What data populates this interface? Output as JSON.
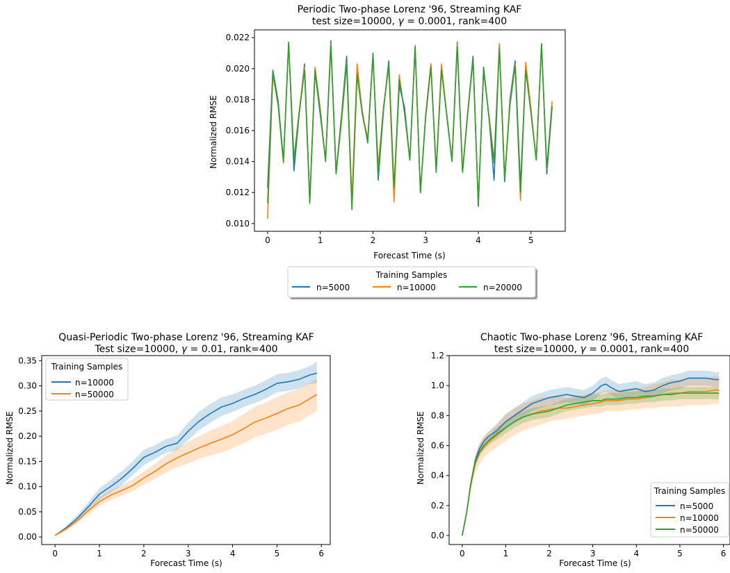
{
  "chart_data": [
    {
      "type": "line",
      "title": "Periodic Two-phase Lorenz '96, Streaming KAF",
      "subtitle_prefix": "test size=10000, ",
      "subtitle_gamma_symbol": "γ",
      "subtitle_suffix": " = 0.0001, rank=400",
      "xlabel": "Forecast Time (s)",
      "ylabel": "Normalized RMSE",
      "xlim": [
        -0.25,
        5.65
      ],
      "ylim": [
        0.0095,
        0.0225
      ],
      "xticks": [
        0,
        1,
        2,
        3,
        4,
        5
      ],
      "yticks": [
        0.01,
        0.012,
        0.014,
        0.016,
        0.018,
        0.02,
        0.022
      ],
      "ytick_format": 3,
      "legend": {
        "title": "Training Samples",
        "placement": "below-center",
        "ncol": 3,
        "shadow": true
      },
      "x": [
        0.0,
        0.1,
        0.2,
        0.3,
        0.4,
        0.5,
        0.6,
        0.7,
        0.8,
        0.9,
        1.0,
        1.1,
        1.2,
        1.3,
        1.4,
        1.5,
        1.6,
        1.7,
        1.8,
        1.9,
        2.0,
        2.1,
        2.2,
        2.3,
        2.4,
        2.5,
        2.6,
        2.7,
        2.8,
        2.9,
        3.0,
        3.1,
        3.2,
        3.3,
        3.4,
        3.5,
        3.6,
        3.7,
        3.8,
        3.9,
        4.0,
        4.1,
        4.2,
        4.3,
        4.4,
        4.5,
        4.6,
        4.7,
        4.8,
        4.9,
        5.0,
        5.1,
        5.2,
        5.3,
        5.4
      ],
      "series": [
        {
          "name": "n=5000",
          "color": "#1f77b4",
          "values": [
            0.0123,
            0.0199,
            0.0179,
            0.0141,
            0.0217,
            0.0134,
            0.0171,
            0.0203,
            0.0115,
            0.0198,
            0.017,
            0.0141,
            0.0218,
            0.0133,
            0.0169,
            0.0208,
            0.0113,
            0.0199,
            0.0172,
            0.0152,
            0.021,
            0.0128,
            0.0173,
            0.0205,
            0.012,
            0.0189,
            0.0175,
            0.0141,
            0.0214,
            0.012,
            0.017,
            0.0203,
            0.0133,
            0.0201,
            0.0171,
            0.0141,
            0.0217,
            0.0133,
            0.0172,
            0.0208,
            0.0112,
            0.0201,
            0.017,
            0.0128,
            0.0216,
            0.0127,
            0.018,
            0.0205,
            0.0124,
            0.0201,
            0.0172,
            0.0141,
            0.0216,
            0.0132,
            0.0175
          ]
        },
        {
          "name": "n=10000",
          "color": "#ff7f0e",
          "values": [
            0.0103,
            0.0196,
            0.0176,
            0.0139,
            0.0216,
            0.0142,
            0.0173,
            0.0201,
            0.0114,
            0.0201,
            0.0174,
            0.014,
            0.0216,
            0.0133,
            0.0167,
            0.0204,
            0.0115,
            0.0203,
            0.0171,
            0.0155,
            0.0207,
            0.0137,
            0.0175,
            0.0201,
            0.0114,
            0.0196,
            0.0171,
            0.0141,
            0.0215,
            0.012,
            0.017,
            0.0203,
            0.0135,
            0.0203,
            0.017,
            0.0141,
            0.0216,
            0.0134,
            0.0173,
            0.0205,
            0.0113,
            0.0198,
            0.0171,
            0.0141,
            0.0216,
            0.013,
            0.0178,
            0.0203,
            0.0115,
            0.0204,
            0.0174,
            0.0141,
            0.0216,
            0.0135,
            0.0179
          ]
        },
        {
          "name": "n=20000",
          "color": "#2ca02c",
          "values": [
            0.0113,
            0.0198,
            0.0177,
            0.014,
            0.0217,
            0.014,
            0.0171,
            0.0199,
            0.0113,
            0.0199,
            0.0172,
            0.014,
            0.0215,
            0.0132,
            0.0165,
            0.0203,
            0.0109,
            0.0196,
            0.017,
            0.0153,
            0.0209,
            0.0132,
            0.0174,
            0.0203,
            0.0123,
            0.0193,
            0.0172,
            0.0141,
            0.0214,
            0.012,
            0.0168,
            0.0201,
            0.0134,
            0.0199,
            0.017,
            0.014,
            0.0214,
            0.0133,
            0.0171,
            0.0206,
            0.0111,
            0.02,
            0.0169,
            0.0139,
            0.0213,
            0.0128,
            0.0176,
            0.0202,
            0.012,
            0.0199,
            0.0171,
            0.0141,
            0.0216,
            0.0136,
            0.0176
          ]
        }
      ]
    },
    {
      "type": "line",
      "title": "Quasi-Periodic Two-phase Lorenz '96, Streaming KAF",
      "subtitle_prefix": "Test size=10000, ",
      "subtitle_gamma_symbol": "γ",
      "subtitle_suffix": " = 0.01, rank=400",
      "xlabel": "Forecast Time (s)",
      "ylabel": "Normalized RMSE",
      "xlim": [
        -0.3,
        6.2
      ],
      "ylim": [
        -0.015,
        0.36
      ],
      "xticks": [
        0,
        1,
        2,
        3,
        4,
        5,
        6
      ],
      "yticks": [
        0.0,
        0.05,
        0.1,
        0.15,
        0.2,
        0.25,
        0.3,
        0.35
      ],
      "ytick_format": 2,
      "legend": {
        "title": "Training Samples",
        "placement": "upper-left",
        "ncol": 1,
        "shadow": false
      },
      "x": [
        0.0,
        0.25,
        0.5,
        0.75,
        1.0,
        1.25,
        1.5,
        1.75,
        2.0,
        2.25,
        2.5,
        2.75,
        3.0,
        3.25,
        3.5,
        3.75,
        4.0,
        4.25,
        4.5,
        4.75,
        5.0,
        5.25,
        5.5,
        5.75,
        5.9
      ],
      "series": [
        {
          "name": "n=10000",
          "color": "#1f77b4",
          "values": [
            0.003,
            0.018,
            0.037,
            0.06,
            0.085,
            0.1,
            0.116,
            0.136,
            0.158,
            0.168,
            0.18,
            0.186,
            0.21,
            0.23,
            0.245,
            0.258,
            0.265,
            0.275,
            0.283,
            0.293,
            0.305,
            0.308,
            0.313,
            0.322,
            0.325
          ],
          "lower": [
            0.002,
            0.014,
            0.031,
            0.052,
            0.074,
            0.088,
            0.103,
            0.123,
            0.143,
            0.155,
            0.167,
            0.172,
            0.193,
            0.212,
            0.227,
            0.24,
            0.248,
            0.258,
            0.266,
            0.275,
            0.287,
            0.29,
            0.295,
            0.304,
            0.305
          ],
          "upper": [
            0.004,
            0.022,
            0.044,
            0.069,
            0.096,
            0.113,
            0.13,
            0.15,
            0.173,
            0.182,
            0.194,
            0.201,
            0.227,
            0.249,
            0.264,
            0.277,
            0.283,
            0.292,
            0.3,
            0.311,
            0.323,
            0.326,
            0.331,
            0.34,
            0.348
          ]
        },
        {
          "name": "n=50000",
          "color": "#ff7f0e",
          "values": [
            0.003,
            0.016,
            0.032,
            0.052,
            0.07,
            0.083,
            0.092,
            0.102,
            0.117,
            0.13,
            0.145,
            0.157,
            0.167,
            0.177,
            0.186,
            0.194,
            0.203,
            0.215,
            0.228,
            0.236,
            0.245,
            0.255,
            0.262,
            0.275,
            0.283
          ],
          "lower": [
            0.002,
            0.013,
            0.027,
            0.045,
            0.062,
            0.074,
            0.082,
            0.091,
            0.104,
            0.115,
            0.128,
            0.138,
            0.146,
            0.155,
            0.162,
            0.168,
            0.176,
            0.186,
            0.198,
            0.205,
            0.213,
            0.223,
            0.229,
            0.243,
            0.249
          ],
          "upper": [
            0.004,
            0.019,
            0.037,
            0.059,
            0.079,
            0.093,
            0.103,
            0.114,
            0.13,
            0.145,
            0.162,
            0.176,
            0.189,
            0.2,
            0.211,
            0.22,
            0.23,
            0.244,
            0.258,
            0.267,
            0.278,
            0.287,
            0.295,
            0.306,
            0.314
          ]
        }
      ]
    },
    {
      "type": "line",
      "title": "Chaotic Two-phase Lorenz '96, Streaming KAF",
      "subtitle_prefix": "test size=10000, ",
      "subtitle_gamma_symbol": "γ",
      "subtitle_suffix": " = 0.0001, rank=400",
      "xlabel": "Forecast Time (s)",
      "ylabel": "Normalized RMSE",
      "xlim": [
        -0.3,
        6.15
      ],
      "ylim": [
        -0.06,
        1.2
      ],
      "xticks": [
        0,
        1,
        2,
        3,
        4,
        5,
        6
      ],
      "yticks": [
        0.0,
        0.2,
        0.4,
        0.6,
        0.8,
        1.0,
        1.2
      ],
      "ytick_format": 1,
      "legend": {
        "title": "Training Samples",
        "placement": "lower-right",
        "ncol": 1,
        "shadow": false
      },
      "x": [
        0.0,
        0.1,
        0.2,
        0.3,
        0.4,
        0.5,
        0.6,
        0.8,
        1.0,
        1.2,
        1.4,
        1.6,
        1.8,
        2.0,
        2.2,
        2.4,
        2.6,
        2.8,
        3.0,
        3.2,
        3.3,
        3.4,
        3.6,
        3.8,
        4.0,
        4.2,
        4.4,
        4.6,
        4.8,
        5.0,
        5.2,
        5.4,
        5.6,
        5.8,
        5.9
      ],
      "series": [
        {
          "name": "n=5000",
          "color": "#1f77b4",
          "values": [
            0.0,
            0.15,
            0.35,
            0.5,
            0.58,
            0.63,
            0.66,
            0.7,
            0.76,
            0.8,
            0.84,
            0.88,
            0.9,
            0.92,
            0.93,
            0.94,
            0.93,
            0.92,
            0.95,
            1.0,
            1.01,
            0.99,
            0.96,
            0.97,
            0.98,
            0.96,
            0.97,
            1.0,
            1.02,
            1.03,
            1.05,
            1.05,
            1.05,
            1.04,
            1.04
          ],
          "lower": [
            0.0,
            0.14,
            0.33,
            0.47,
            0.55,
            0.6,
            0.63,
            0.66,
            0.71,
            0.75,
            0.79,
            0.83,
            0.85,
            0.87,
            0.88,
            0.89,
            0.88,
            0.87,
            0.9,
            0.95,
            0.96,
            0.94,
            0.91,
            0.92,
            0.93,
            0.91,
            0.92,
            0.95,
            0.97,
            0.98,
            1.0,
            1.0,
            1.0,
            0.99,
            0.99
          ],
          "upper": [
            0.0,
            0.16,
            0.37,
            0.53,
            0.61,
            0.66,
            0.69,
            0.74,
            0.81,
            0.85,
            0.89,
            0.93,
            0.95,
            0.97,
            0.98,
            0.99,
            0.98,
            0.97,
            1.0,
            1.05,
            1.06,
            1.04,
            1.01,
            1.02,
            1.03,
            1.01,
            1.02,
            1.05,
            1.07,
            1.08,
            1.1,
            1.1,
            1.1,
            1.09,
            1.09
          ]
        },
        {
          "name": "n=10000",
          "color": "#ff7f0e",
          "values": [
            0.0,
            0.15,
            0.34,
            0.48,
            0.55,
            0.59,
            0.62,
            0.67,
            0.72,
            0.76,
            0.79,
            0.81,
            0.83,
            0.84,
            0.85,
            0.85,
            0.86,
            0.87,
            0.88,
            0.89,
            0.9,
            0.9,
            0.9,
            0.91,
            0.91,
            0.92,
            0.93,
            0.94,
            0.95,
            0.95,
            0.96,
            0.96,
            0.96,
            0.97,
            0.97
          ],
          "lower": [
            0.0,
            0.13,
            0.3,
            0.42,
            0.48,
            0.52,
            0.55,
            0.59,
            0.63,
            0.67,
            0.7,
            0.72,
            0.74,
            0.76,
            0.77,
            0.78,
            0.79,
            0.8,
            0.81,
            0.82,
            0.83,
            0.83,
            0.83,
            0.84,
            0.84,
            0.85,
            0.85,
            0.86,
            0.86,
            0.86,
            0.87,
            0.87,
            0.87,
            0.88,
            0.88
          ],
          "upper": [
            0.0,
            0.17,
            0.38,
            0.54,
            0.62,
            0.66,
            0.69,
            0.75,
            0.81,
            0.85,
            0.88,
            0.9,
            0.92,
            0.92,
            0.93,
            0.92,
            0.93,
            0.94,
            0.95,
            0.96,
            0.97,
            0.97,
            0.97,
            0.98,
            0.98,
            0.99,
            1.01,
            1.02,
            1.04,
            1.04,
            1.05,
            1.05,
            1.05,
            1.06,
            1.06
          ]
        },
        {
          "name": "n=50000",
          "color": "#2ca02c",
          "values": [
            0.0,
            0.15,
            0.35,
            0.49,
            0.56,
            0.6,
            0.63,
            0.68,
            0.72,
            0.76,
            0.79,
            0.81,
            0.82,
            0.83,
            0.85,
            0.87,
            0.88,
            0.89,
            0.9,
            0.9,
            0.91,
            0.91,
            0.91,
            0.92,
            0.92,
            0.93,
            0.93,
            0.94,
            0.94,
            0.95,
            0.95,
            0.95,
            0.95,
            0.95,
            0.95
          ],
          "lower": [
            0.0,
            0.14,
            0.33,
            0.46,
            0.53,
            0.57,
            0.6,
            0.64,
            0.68,
            0.72,
            0.75,
            0.77,
            0.78,
            0.79,
            0.81,
            0.83,
            0.84,
            0.85,
            0.86,
            0.86,
            0.87,
            0.87,
            0.87,
            0.88,
            0.88,
            0.89,
            0.89,
            0.9,
            0.9,
            0.91,
            0.91,
            0.91,
            0.91,
            0.91,
            0.91
          ],
          "upper": [
            0.0,
            0.16,
            0.37,
            0.52,
            0.59,
            0.63,
            0.66,
            0.72,
            0.76,
            0.8,
            0.83,
            0.85,
            0.86,
            0.87,
            0.89,
            0.91,
            0.92,
            0.93,
            0.94,
            0.94,
            0.95,
            0.95,
            0.95,
            0.96,
            0.96,
            0.97,
            0.97,
            0.98,
            0.98,
            0.99,
            0.99,
            0.99,
            0.99,
            0.99,
            0.99
          ]
        }
      ]
    }
  ]
}
